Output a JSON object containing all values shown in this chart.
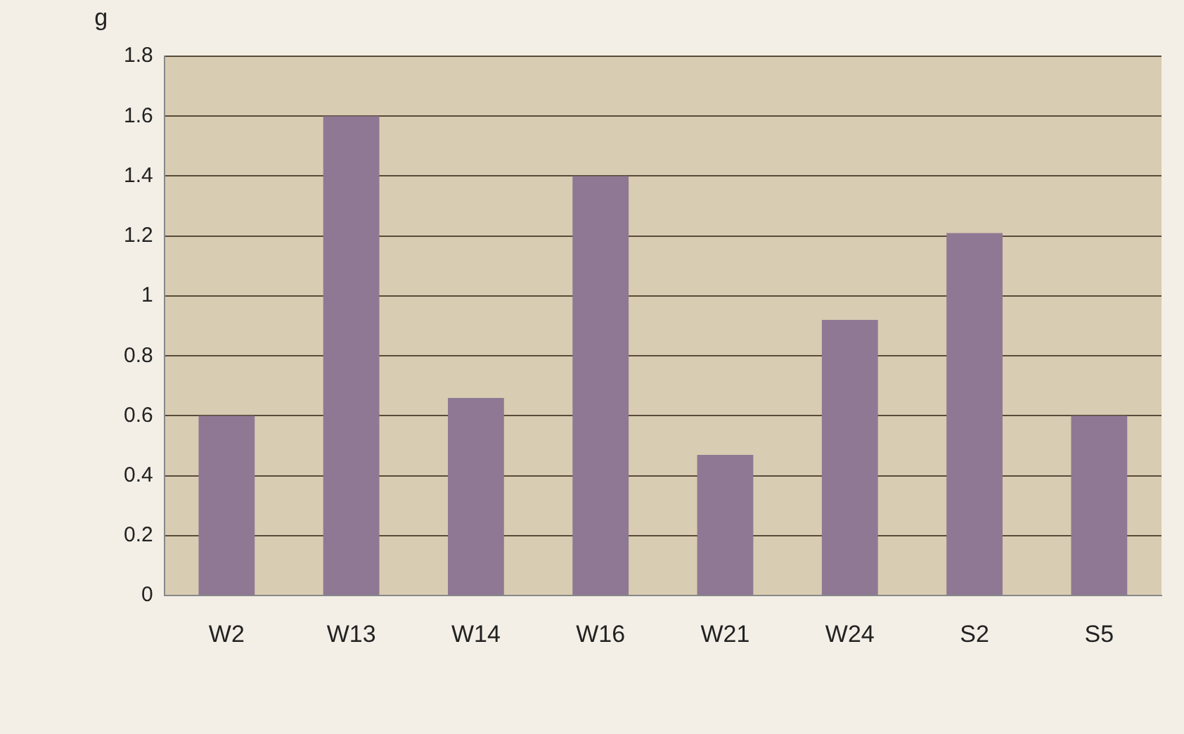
{
  "chart_data": {
    "type": "bar",
    "ylabel": "g",
    "categories": [
      "W2",
      "W13",
      "W14",
      "W16",
      "W21",
      "W24",
      "S2",
      "S5"
    ],
    "values": [
      0.6,
      1.6,
      0.66,
      1.4,
      0.47,
      0.92,
      1.21,
      0.6
    ],
    "color": "#8e7893",
    "ylim": [
      0,
      1.8
    ],
    "yticks": [
      0,
      0.2,
      0.4,
      0.6,
      0.8,
      1,
      1.2,
      1.4,
      1.6,
      1.8
    ],
    "grid": "y",
    "legend": false
  }
}
